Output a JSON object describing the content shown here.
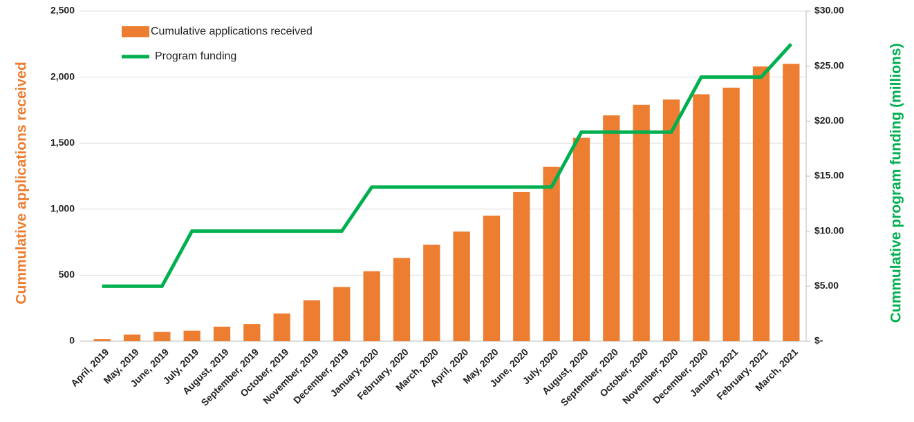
{
  "chart_data": {
    "type": "bar",
    "categories": [
      "April, 2019",
      "May, 2019",
      "June, 2019",
      "July, 2019",
      "August, 2019",
      "September, 2019",
      "October, 2019",
      "November, 2019",
      "December, 2019",
      "January, 2020",
      "February, 2020",
      "March, 2020",
      "April, 2020",
      "May, 2020",
      "June, 2020",
      "July, 2020",
      "August, 2020",
      "September, 2020",
      "October, 2020",
      "November, 2020",
      "December, 2020",
      "January, 2021",
      "February, 2021",
      "March, 2021"
    ],
    "series": [
      {
        "name": "Cumulative applications received",
        "type": "bar",
        "color": "#ed7d31",
        "values": [
          15,
          50,
          70,
          80,
          110,
          130,
          210,
          310,
          410,
          530,
          630,
          730,
          830,
          950,
          1130,
          1320,
          1540,
          1710,
          1790,
          1830,
          1870,
          1920,
          2080,
          2100
        ]
      },
      {
        "name": "Program funding",
        "type": "line",
        "axis": "y2",
        "color": "#00b050",
        "values": [
          5,
          5,
          5,
          10,
          10,
          10,
          10,
          10,
          10,
          14,
          14,
          14,
          14,
          14,
          14,
          14,
          19,
          19,
          19,
          19,
          24,
          24,
          24,
          27
        ]
      }
    ],
    "ylabel": "Cummulative applications received",
    "y2label": "Cummulative program funding (millions)",
    "ylim": [
      0,
      2500
    ],
    "yticks": [
      0,
      500,
      {
        "value": 1000,
        "label": "1,000"
      },
      {
        "value": 1500,
        "label": "1,500"
      },
      {
        "value": 2000,
        "label": "2,000"
      },
      {
        "value": 2500,
        "label": "2,500"
      }
    ],
    "y2lim": [
      0,
      30
    ],
    "y2ticks": [
      {
        "value": 0,
        "label": "$-"
      },
      {
        "value": 5,
        "label": "$5.00"
      },
      {
        "value": 10,
        "label": "$10.00"
      },
      {
        "value": 15,
        "label": "$15.00"
      },
      {
        "value": 20,
        "label": "$20.00"
      },
      {
        "value": 25,
        "label": "$25.00"
      },
      {
        "value": 30,
        "label": "$30.00"
      }
    ],
    "grid": true,
    "legend": "upper left"
  }
}
